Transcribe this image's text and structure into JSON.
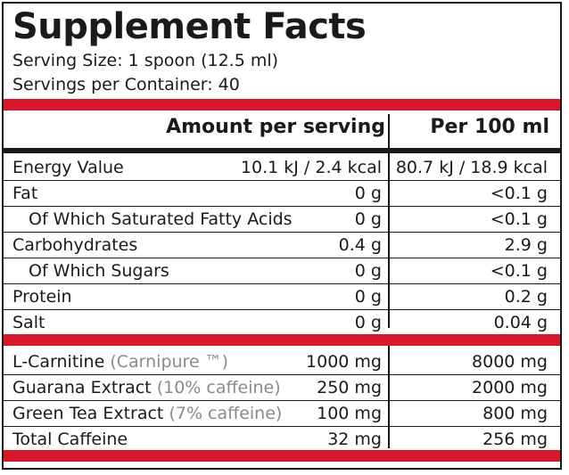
{
  "title": "Supplement Facts",
  "serving_size": "Serving Size: 1 spoon (12.5 ml)",
  "servings_per_container": "Servings per Container: 40",
  "headers": {
    "amount": "Amount per serving",
    "per100": "Per 100 ml"
  },
  "nutrition": [
    {
      "name": "Energy Value",
      "amount": "10.1 kJ / 2.4 kcal",
      "per100": "80.7 kJ / 18.9 kcal"
    },
    {
      "name": "Fat",
      "amount": "0 g",
      "per100": "<0.1 g"
    },
    {
      "name": "Of Which Saturated Fatty Acids",
      "amount": "0 g",
      "per100": "<0.1 g"
    },
    {
      "name": "Carbohydrates",
      "amount": "0.4 g",
      "per100": "2.9 g"
    },
    {
      "name": "Of Which Sugars",
      "amount": "0 g",
      "per100": "<0.1 g"
    },
    {
      "name": "Protein",
      "amount": "0 g",
      "per100": "0.2 g"
    },
    {
      "name": "Salt",
      "amount": "0 g",
      "per100": "0.04 g"
    }
  ],
  "ingredients": [
    {
      "name": "L-Carnitine",
      "note": "(Carnipure ™)",
      "amount": "1000 mg",
      "per100": "8000 mg"
    },
    {
      "name": "Guarana Extract",
      "note": "(10% caffeine)",
      "amount": "250 mg",
      "per100": "2000 mg"
    },
    {
      "name": "Green Tea Extract",
      "note": "(7% caffeine)",
      "amount": "100 mg",
      "per100": "800 mg"
    },
    {
      "name": "Total Caffeine",
      "note": "",
      "amount": "32 mg",
      "per100": "256 mg"
    }
  ],
  "colors": {
    "accent_red": "#d6192d",
    "text": "#1a1a1a",
    "note_gray": "#8a8a8a"
  }
}
